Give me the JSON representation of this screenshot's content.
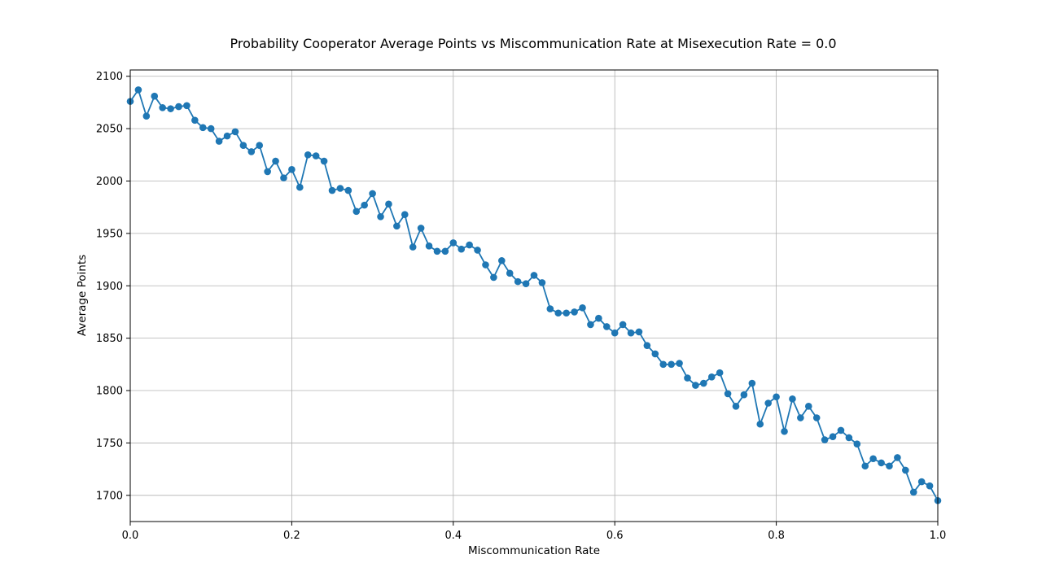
{
  "chart_data": {
    "type": "line",
    "title": "Probability Cooperator Average Points vs Miscommunication Rate at Misexecution Rate = 0.0",
    "xlabel": "Miscommunication Rate",
    "ylabel": "Average Points",
    "xlim": [
      0.0,
      1.0
    ],
    "ylim": [
      1675,
      2106
    ],
    "grid": true,
    "xticks": [
      0.0,
      0.2,
      0.4,
      0.6,
      0.8,
      1.0
    ],
    "xtick_labels": [
      "0.0",
      "0.2",
      "0.4",
      "0.6",
      "0.8",
      "1.0"
    ],
    "yticks": [
      1700,
      1750,
      1800,
      1850,
      1900,
      1950,
      2000,
      2050,
      2100
    ],
    "ytick_labels": [
      "1700",
      "1750",
      "1800",
      "1850",
      "1900",
      "1950",
      "2000",
      "2050",
      "2100"
    ],
    "marker": "circle",
    "series": [
      {
        "color": "#1f77b4",
        "x": [
          0.0,
          0.01,
          0.02,
          0.03,
          0.04,
          0.05,
          0.06,
          0.07,
          0.08,
          0.09,
          0.1,
          0.11,
          0.12,
          0.13,
          0.14,
          0.15,
          0.16,
          0.17,
          0.18,
          0.19,
          0.2,
          0.21,
          0.22,
          0.23,
          0.24,
          0.25,
          0.26,
          0.27,
          0.28,
          0.29,
          0.3,
          0.31,
          0.32,
          0.33,
          0.34,
          0.35,
          0.36,
          0.37,
          0.38,
          0.39,
          0.4,
          0.41,
          0.42,
          0.43,
          0.44,
          0.45,
          0.46,
          0.47,
          0.48,
          0.49,
          0.5,
          0.51,
          0.52,
          0.53,
          0.54,
          0.55,
          0.56,
          0.57,
          0.58,
          0.59,
          0.6,
          0.61,
          0.62,
          0.63,
          0.64,
          0.65,
          0.66,
          0.67,
          0.68,
          0.69,
          0.7,
          0.71,
          0.72,
          0.73,
          0.74,
          0.75,
          0.76,
          0.77,
          0.78,
          0.79,
          0.8,
          0.81,
          0.82,
          0.83,
          0.84,
          0.85,
          0.86,
          0.87,
          0.88,
          0.89,
          0.9,
          0.91,
          0.92,
          0.93,
          0.94,
          0.95,
          0.96,
          0.97,
          0.98,
          0.99,
          1.0
        ],
        "y": [
          2076,
          2087,
          2062,
          2081,
          2070,
          2069,
          2071,
          2072,
          2058,
          2051,
          2050,
          2038,
          2043,
          2047,
          2034,
          2028,
          2034,
          2009,
          2019,
          2003,
          2011,
          1994,
          2025,
          2024,
          2019,
          1991,
          1993,
          1991,
          1971,
          1977,
          1988,
          1966,
          1978,
          1957,
          1968,
          1937,
          1955,
          1938,
          1933,
          1933,
          1941,
          1935,
          1939,
          1934,
          1920,
          1908,
          1924,
          1912,
          1904,
          1902,
          1910,
          1903,
          1878,
          1874,
          1874,
          1875,
          1879,
          1863,
          1869,
          1861,
          1855,
          1863,
          1855,
          1856,
          1843,
          1835,
          1825,
          1825,
          1826,
          1812,
          1805,
          1807,
          1813,
          1817,
          1797,
          1785,
          1796,
          1807,
          1768,
          1788,
          1794,
          1761,
          1792,
          1774,
          1785,
          1774,
          1753,
          1756,
          1762,
          1755,
          1749,
          1728,
          1735,
          1731,
          1728,
          1736,
          1724,
          1703,
          1713,
          1709,
          1695
        ]
      }
    ]
  }
}
